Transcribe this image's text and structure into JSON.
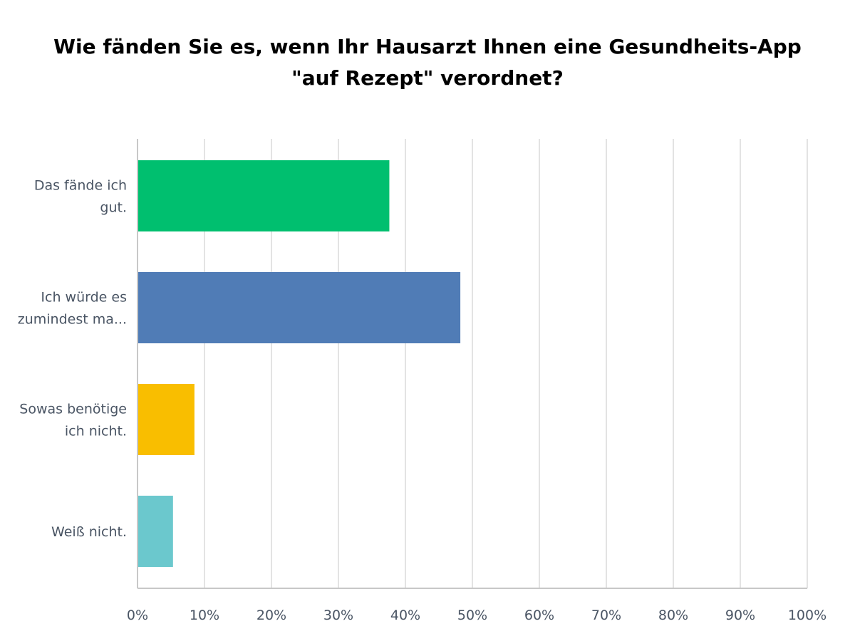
{
  "title_lines": [
    "Wie fänden Sie es, wenn Ihr Hausarzt Ihnen eine Gesundheits-App",
    "\"auf Rezept\" verordnet?"
  ],
  "colors": {
    "grid": "#e3e3e3",
    "axis": "#c8c8c8",
    "label": "#4a5564"
  },
  "chart_data": {
    "type": "bar",
    "orientation": "horizontal",
    "title": "Wie fänden Sie es, wenn Ihr Hausarzt Ihnen eine Gesundheits-App \"auf Rezept\" verordnet?",
    "categories": [
      [
        "Das fände ich",
        "gut."
      ],
      [
        "Ich würde es",
        "zumindest ma..."
      ],
      [
        "Sowas benötige",
        "ich nicht."
      ],
      [
        "Weiß nicht."
      ]
    ],
    "values": [
      37.6,
      48.2,
      8.5,
      5.3
    ],
    "colors": [
      "#00bf6f",
      "#507cb6",
      "#f9be00",
      "#6bc8cd"
    ],
    "xlim": [
      0,
      100
    ],
    "ticks": [
      "0%",
      "10%",
      "20%",
      "30%",
      "40%",
      "50%",
      "60%",
      "70%",
      "80%",
      "90%",
      "100%"
    ],
    "grid": true,
    "legend": "none"
  }
}
